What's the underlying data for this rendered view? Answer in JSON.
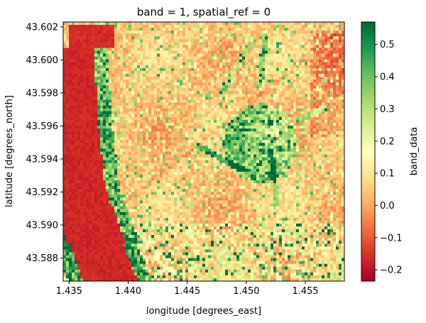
{
  "chart_data": {
    "type": "heatmap",
    "title": "band = 1, spatial_ref = 0",
    "xlabel": "longitude [degrees_east]",
    "ylabel": "latitude [degrees_north]",
    "colorbar_label": "band_data",
    "xlim": [
      1.4345,
      1.4583
    ],
    "ylim": [
      43.5866,
      43.6023
    ],
    "clim": [
      -0.235,
      0.57
    ],
    "colormap": "RdYlGn",
    "x_ticks": [
      {
        "value": 1.435,
        "label": "1.435"
      },
      {
        "value": 1.44,
        "label": "1.440"
      },
      {
        "value": 1.445,
        "label": "1.445"
      },
      {
        "value": 1.45,
        "label": "1.450"
      },
      {
        "value": 1.455,
        "label": "1.455"
      }
    ],
    "y_ticks": [
      {
        "value": 43.588,
        "label": "43.588"
      },
      {
        "value": 43.59,
        "label": "43.590"
      },
      {
        "value": 43.592,
        "label": "43.592"
      },
      {
        "value": 43.594,
        "label": "43.594"
      },
      {
        "value": 43.596,
        "label": "43.596"
      },
      {
        "value": 43.598,
        "label": "43.598"
      },
      {
        "value": 43.6,
        "label": "43.600"
      },
      {
        "value": 43.602,
        "label": "43.602"
      }
    ],
    "colorbar_ticks": [
      {
        "value": -0.2,
        "label": "−0.2"
      },
      {
        "value": -0.1,
        "label": "−0.1"
      },
      {
        "value": 0.0,
        "label": "0.0"
      },
      {
        "value": 0.1,
        "label": "0.1"
      },
      {
        "value": 0.2,
        "label": "0.2"
      },
      {
        "value": 0.3,
        "label": "0.3"
      },
      {
        "value": 0.4,
        "label": "0.4"
      },
      {
        "value": 0.5,
        "label": "0.5"
      }
    ],
    "colormap_stops": [
      "#a50026",
      "#d73027",
      "#f46d43",
      "#fdae61",
      "#fee08b",
      "#ffffbf",
      "#d9ef8b",
      "#a6d96a",
      "#66bd63",
      "#1a9850",
      "#006837"
    ],
    "grid": false
  }
}
